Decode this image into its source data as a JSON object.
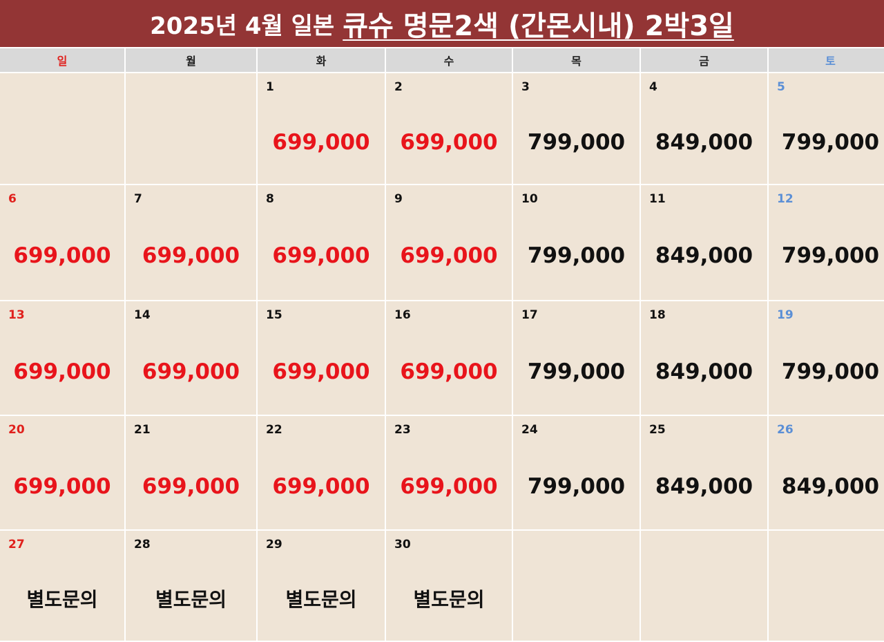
{
  "title": {
    "prefix": "2025년 4월 일본",
    "main": "큐슈 명문2색 (간몬시내) 2박3일"
  },
  "colors": {
    "header_bg": "#933535",
    "cell_bg": "#efe4d6",
    "sunday": "#e0201c",
    "saturday": "#5b8fd6",
    "discount": "#e8141b",
    "regular": "#111111"
  },
  "weekdays": [
    "일",
    "월",
    "화",
    "수",
    "목",
    "금",
    "토"
  ],
  "weeks": [
    [
      {
        "day": "",
        "price": ""
      },
      {
        "day": "",
        "price": ""
      },
      {
        "day": "1",
        "price": "699,000",
        "color": "#e8141b"
      },
      {
        "day": "2",
        "price": "699,000",
        "color": "#e8141b"
      },
      {
        "day": "3",
        "price": "799,000",
        "color": "#111111"
      },
      {
        "day": "4",
        "price": "849,000",
        "color": "#111111"
      },
      {
        "day": "5",
        "price": "799,000",
        "color": "#111111"
      }
    ],
    [
      {
        "day": "6",
        "price": "699,000",
        "color": "#e8141b"
      },
      {
        "day": "7",
        "price": "699,000",
        "color": "#e8141b"
      },
      {
        "day": "8",
        "price": "699,000",
        "color": "#e8141b"
      },
      {
        "day": "9",
        "price": "699,000",
        "color": "#e8141b"
      },
      {
        "day": "10",
        "price": "799,000",
        "color": "#111111"
      },
      {
        "day": "11",
        "price": "849,000",
        "color": "#111111"
      },
      {
        "day": "12",
        "price": "799,000",
        "color": "#111111"
      }
    ],
    [
      {
        "day": "13",
        "price": "699,000",
        "color": "#e8141b"
      },
      {
        "day": "14",
        "price": "699,000",
        "color": "#e8141b"
      },
      {
        "day": "15",
        "price": "699,000",
        "color": "#e8141b"
      },
      {
        "day": "16",
        "price": "699,000",
        "color": "#e8141b"
      },
      {
        "day": "17",
        "price": "799,000",
        "color": "#111111"
      },
      {
        "day": "18",
        "price": "849,000",
        "color": "#111111"
      },
      {
        "day": "19",
        "price": "799,000",
        "color": "#111111"
      }
    ],
    [
      {
        "day": "20",
        "price": "699,000",
        "color": "#e8141b"
      },
      {
        "day": "21",
        "price": "699,000",
        "color": "#e8141b"
      },
      {
        "day": "22",
        "price": "699,000",
        "color": "#e8141b"
      },
      {
        "day": "23",
        "price": "699,000",
        "color": "#e8141b"
      },
      {
        "day": "24",
        "price": "799,000",
        "color": "#111111"
      },
      {
        "day": "25",
        "price": "849,000",
        "color": "#111111"
      },
      {
        "day": "26",
        "price": "849,000",
        "color": "#111111"
      }
    ],
    [
      {
        "day": "27",
        "price": "별도문의",
        "color": "#111111"
      },
      {
        "day": "28",
        "price": "별도문의",
        "color": "#111111"
      },
      {
        "day": "29",
        "price": "별도문의",
        "color": "#111111"
      },
      {
        "day": "30",
        "price": "별도문의",
        "color": "#111111"
      },
      {
        "day": "",
        "price": ""
      },
      {
        "day": "",
        "price": ""
      },
      {
        "day": "",
        "price": ""
      }
    ]
  ]
}
